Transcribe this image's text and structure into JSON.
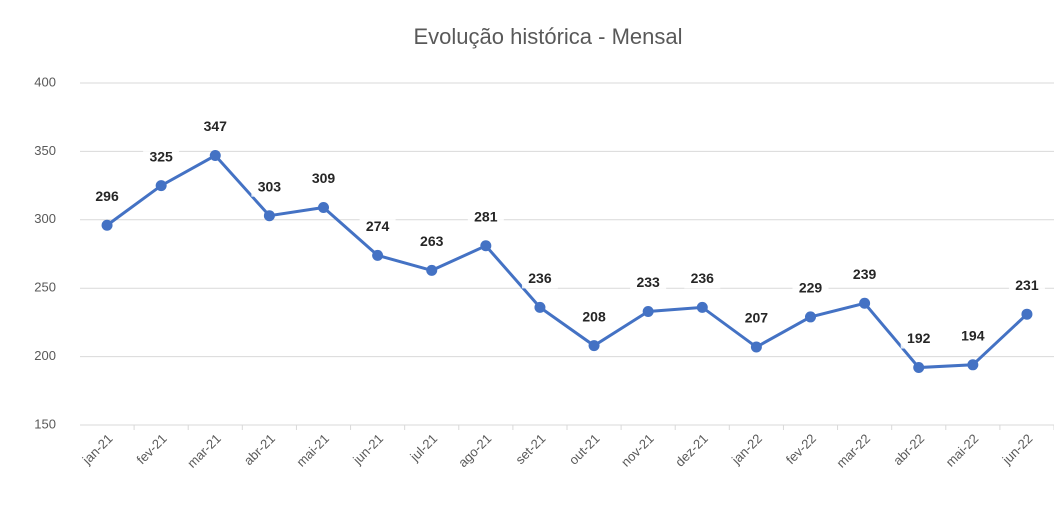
{
  "chart_data": {
    "type": "line",
    "title": "Evolução histórica - Mensal",
    "categories": [
      "jan-21",
      "fev-21",
      "mar-21",
      "abr-21",
      "mai-21",
      "jun-21",
      "jul-21",
      "ago-21",
      "set-21",
      "out-21",
      "nov-21",
      "dez-21",
      "jan-22",
      "fev-22",
      "mar-22",
      "abr-22",
      "mai-22",
      "jun-22"
    ],
    "series": [
      {
        "name": "Mensal",
        "color": "#4472c4",
        "values": [
          296,
          325,
          347,
          303,
          309,
          274,
          263,
          281,
          236,
          208,
          233,
          236,
          207,
          229,
          239,
          192,
          194,
          231
        ]
      }
    ],
    "ylim": [
      150,
      400
    ],
    "yticks": [
      150,
      200,
      250,
      300,
      350,
      400
    ],
    "grid": true
  }
}
